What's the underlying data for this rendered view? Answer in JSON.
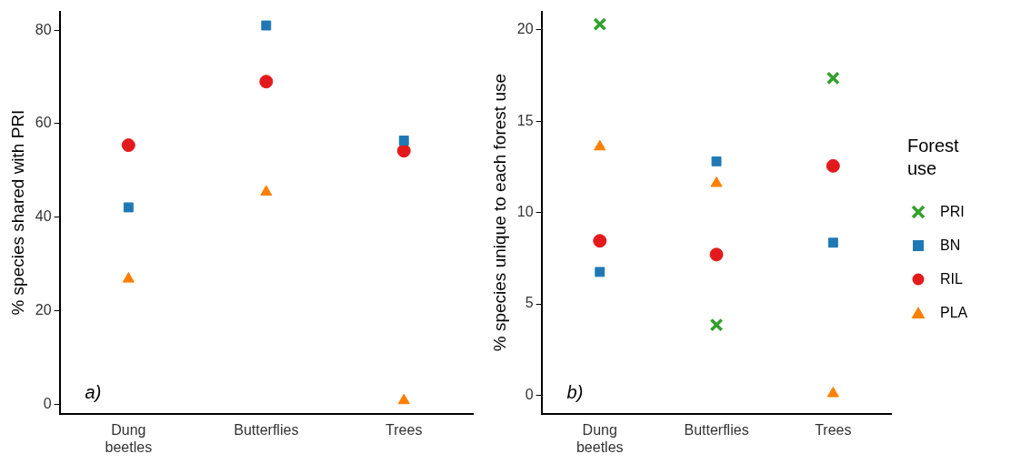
{
  "chart_data": [
    {
      "type": "scatter",
      "categories": [
        "Dung beetles",
        "Butterflies",
        "Trees"
      ],
      "ylabel": "% species shared with PRI",
      "ylim": [
        -2,
        84
      ],
      "yticks": [
        0,
        20,
        40,
        60,
        80
      ],
      "grid": false,
      "legend": false,
      "annotations": [
        "a)"
      ],
      "series": [
        {
          "color": "#1f78b4",
          "marker": "square",
          "values": [
            42.1,
            81,
            56.4
          ]
        },
        {
          "color": "#e31a1c",
          "marker": "circle",
          "values": [
            55.4,
            69,
            54.2
          ]
        },
        {
          "color": "#ff7f00",
          "marker": "triangle",
          "values": [
            26.8,
            45.4,
            0.8
          ]
        }
      ]
    },
    {
      "type": "scatter",
      "categories": [
        "Dung beetles",
        "Butterflies",
        "Trees"
      ],
      "ylabel": "% species unique to each forest use",
      "ylim": [
        -1,
        21
      ],
      "yticks": [
        0,
        5,
        10,
        15,
        20
      ],
      "grid": false,
      "legend": "right",
      "legend_title": "Forest use",
      "annotations": [
        "b)"
      ],
      "series": [
        {
          "name": "PRI",
          "color": "#33a02c",
          "marker": "cross",
          "values": [
            20.3,
            3.85,
            17.35
          ]
        },
        {
          "name": "BN",
          "color": "#1f78b4",
          "marker": "square",
          "values": [
            6.75,
            12.8,
            8.35
          ]
        },
        {
          "name": "RIL",
          "color": "#e31a1c",
          "marker": "circle",
          "values": [
            8.45,
            7.7,
            12.55
          ]
        },
        {
          "name": "PLA",
          "color": "#ff7f00",
          "marker": "triangle",
          "values": [
            13.6,
            11.6,
            0.1
          ]
        }
      ]
    }
  ]
}
